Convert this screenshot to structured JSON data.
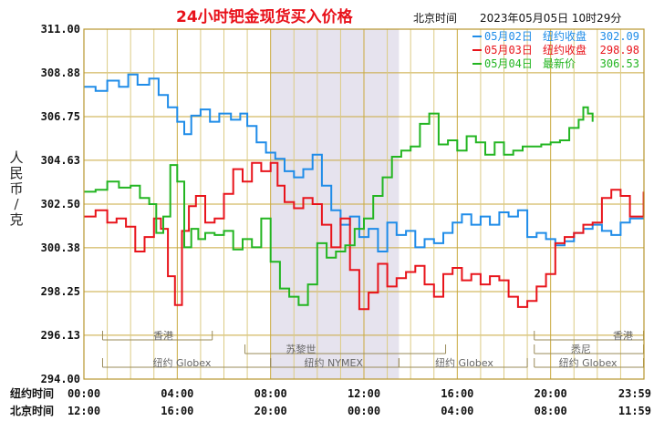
{
  "chart_data": {
    "type": "line",
    "title": "24小时钯金现货买入价格",
    "subtitle_timezone": "北京时间",
    "timestamp": "2023年05月05日 10时29分",
    "ylabel": "人民币/克",
    "ylim": [
      294.0,
      311.0
    ],
    "yticks": [
      "311.00",
      "308.88",
      "306.75",
      "304.63",
      "302.50",
      "300.38",
      "298.25",
      "296.13",
      "294.00"
    ],
    "xrange_hours": [
      0,
      24
    ],
    "xticks_hours": [
      0,
      4,
      8,
      12,
      16,
      20,
      23.983
    ],
    "row1_label": "纽约时间",
    "row1_ticks": [
      "00:00",
      "04:00",
      "08:00",
      "12:00",
      "16:00",
      "20:00",
      "23:59"
    ],
    "row2_label": "北京时间",
    "row2_ticks": [
      "12:00",
      "16:00",
      "20:00",
      "00:00",
      "04:00",
      "08:00",
      "11:59"
    ],
    "grid": true,
    "highlight_band_hours": [
      8,
      13.5
    ],
    "series": [
      {
        "name": "05月02日",
        "legend_label": "纽约收盘",
        "legend_value": "302.09",
        "color": "#1f8ce8",
        "x": [
          0,
          0.5,
          1.0,
          1.5,
          1.9,
          2.3,
          2.8,
          3.2,
          3.6,
          4.0,
          4.3,
          4.6,
          5.0,
          5.4,
          5.8,
          6.3,
          6.7,
          7.0,
          7.4,
          7.8,
          8.2,
          8.6,
          9.0,
          9.4,
          9.8,
          10.2,
          10.6,
          11.0,
          11.4,
          11.8,
          12.2,
          12.6,
          13.0,
          13.4,
          13.8,
          14.2,
          14.6,
          15.0,
          15.4,
          15.8,
          16.2,
          16.6,
          17.0,
          17.4,
          17.8,
          18.2,
          18.6,
          19.0,
          19.4,
          19.8,
          20.2,
          20.6,
          21.0,
          21.4,
          21.8,
          22.2,
          22.6,
          23.0,
          23.4,
          23.983
        ],
        "y": [
          308.2,
          308.0,
          308.5,
          308.2,
          308.8,
          308.3,
          308.6,
          307.8,
          307.2,
          306.5,
          305.9,
          306.8,
          307.1,
          306.5,
          306.9,
          306.6,
          306.9,
          306.3,
          305.5,
          305.0,
          304.7,
          304.1,
          303.8,
          304.2,
          304.9,
          303.4,
          302.2,
          301.5,
          301.9,
          300.9,
          301.3,
          300.2,
          301.6,
          301.0,
          301.2,
          300.4,
          300.8,
          300.6,
          301.1,
          301.6,
          302.0,
          301.5,
          301.9,
          301.5,
          302.1,
          301.9,
          302.2,
          300.9,
          301.1,
          300.8,
          300.5,
          300.7,
          301.1,
          301.3,
          301.5,
          301.2,
          301.0,
          301.6,
          301.8,
          301.8
        ]
      },
      {
        "name": "05月03日",
        "legend_label": "纽约收盘",
        "legend_value": "298.98",
        "color": "#e8141b",
        "x": [
          0,
          0.5,
          1.0,
          1.4,
          1.8,
          2.2,
          2.6,
          3.0,
          3.3,
          3.6,
          3.9,
          4.2,
          4.5,
          4.8,
          5.2,
          5.6,
          6.0,
          6.4,
          6.8,
          7.2,
          7.6,
          8.0,
          8.3,
          8.6,
          9.0,
          9.4,
          9.8,
          10.2,
          10.6,
          11.0,
          11.4,
          11.8,
          12.2,
          12.6,
          13.0,
          13.4,
          13.8,
          14.2,
          14.6,
          15.0,
          15.4,
          15.8,
          16.2,
          16.6,
          17.0,
          17.4,
          17.8,
          18.2,
          18.6,
          19.0,
          19.4,
          19.8,
          20.2,
          20.6,
          21.0,
          21.4,
          21.8,
          22.2,
          22.6,
          23.0,
          23.4,
          23.983
        ],
        "y": [
          301.9,
          302.2,
          301.6,
          301.8,
          301.4,
          300.2,
          300.9,
          301.8,
          301.3,
          299.0,
          297.6,
          301.2,
          302.4,
          302.9,
          301.6,
          301.8,
          303.0,
          304.2,
          303.6,
          304.5,
          304.1,
          304.5,
          303.4,
          302.6,
          302.3,
          302.8,
          302.5,
          301.5,
          300.4,
          301.8,
          299.3,
          297.4,
          298.2,
          299.6,
          298.5,
          298.9,
          299.2,
          299.5,
          298.6,
          298.0,
          299.1,
          299.4,
          298.8,
          299.1,
          298.6,
          299.0,
          298.8,
          298.0,
          297.5,
          297.8,
          298.5,
          299.1,
          300.6,
          300.9,
          301.1,
          301.5,
          301.6,
          302.8,
          303.2,
          302.9,
          301.9,
          303.1
        ]
      },
      {
        "name": "05月04日",
        "legend_label": "最新价",
        "legend_value": "306.53",
        "color": "#23b521",
        "x": [
          0,
          0.5,
          1.0,
          1.5,
          2.0,
          2.4,
          2.8,
          3.1,
          3.4,
          3.7,
          4.0,
          4.3,
          4.6,
          4.9,
          5.2,
          5.6,
          6.0,
          6.4,
          6.8,
          7.2,
          7.6,
          8.0,
          8.4,
          8.8,
          9.2,
          9.6,
          10.0,
          10.4,
          10.8,
          11.2,
          11.6,
          12.0,
          12.4,
          12.8,
          13.2,
          13.6,
          14.0,
          14.4,
          14.8,
          15.2,
          15.6,
          16.0,
          16.4,
          16.8,
          17.2,
          17.6,
          18.0,
          18.4,
          18.8,
          19.2,
          19.6,
          20.0,
          20.4,
          20.8,
          21.2,
          21.4,
          21.6,
          21.8
        ],
        "y": [
          303.1,
          303.2,
          303.6,
          303.3,
          303.4,
          302.8,
          302.5,
          301.1,
          301.9,
          304.4,
          303.6,
          300.4,
          301.3,
          300.8,
          301.1,
          301.0,
          301.2,
          300.3,
          300.8,
          300.4,
          301.8,
          299.7,
          298.4,
          298.0,
          297.6,
          298.6,
          300.6,
          299.9,
          300.2,
          300.5,
          301.3,
          301.8,
          302.9,
          303.8,
          304.8,
          305.1,
          305.3,
          306.4,
          306.9,
          305.4,
          305.6,
          305.1,
          305.8,
          305.5,
          304.9,
          305.5,
          304.9,
          305.1,
          305.3,
          305.3,
          305.4,
          305.5,
          305.6,
          306.2,
          306.6,
          307.2,
          306.9,
          306.5
        ]
      }
    ],
    "session_bars": [
      {
        "label": "香港",
        "start": 0.8,
        "end": 5.5,
        "row": 1,
        "label_at": 3.4
      },
      {
        "label": "苏黎世",
        "start": 6.9,
        "end": 15.5,
        "row": 2,
        "label_at": 9.3
      },
      {
        "label": "纽约 Globex",
        "start": 0.8,
        "end": 8.0,
        "row": 3,
        "label_at": 4.2
      },
      {
        "label": "纽约 NYMEX",
        "start": 8.0,
        "end": 13.5,
        "row": 3,
        "label_at": 10.7
      },
      {
        "label": "纽约 Globex",
        "start": 13.5,
        "end": 19.0,
        "row": 3,
        "label_at": 16.3
      },
      {
        "label": "纽约 Globex",
        "start": 19.3,
        "end": 23.983,
        "row": 3,
        "label_at": 21.6
      },
      {
        "label": "香港",
        "start": 19.3,
        "end": 23.983,
        "row": 1,
        "label_at": 23.1
      },
      {
        "label": "悉尼",
        "start": 19.3,
        "end": 23.983,
        "row": 2,
        "label_at": 21.3
      }
    ]
  }
}
